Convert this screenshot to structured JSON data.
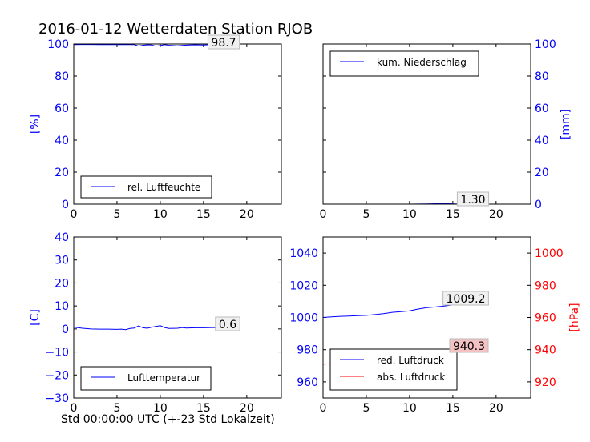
{
  "title": "2016-01-12 Wetterdaten Station RJOB",
  "footer": "Std 00:00:00 UTC (+-23 Std Lokalzeit)",
  "colors": {
    "blue": "#0000ff",
    "red": "#ff0000",
    "annot_red_bg": "#f4c2c2",
    "annot_bg": "#f0f0f0"
  },
  "chart_data": [
    {
      "type": "line",
      "panel": "top-left",
      "ylabel": "[%]",
      "xlim": [
        0,
        24
      ],
      "ylim": [
        0,
        100
      ],
      "xticks": [
        0,
        5,
        10,
        15,
        20
      ],
      "yticks": [
        0,
        20,
        40,
        60,
        80,
        100
      ],
      "legend": {
        "placement": "bottom-left",
        "entries": [
          "rel. Luftfeuchte"
        ]
      },
      "annotation": "98.7",
      "series": [
        {
          "name": "rel. Luftfeuchte",
          "color": "#0000ff",
          "x": [
            0,
            1,
            2,
            3,
            4,
            5,
            6,
            7,
            7.5,
            8,
            8.5,
            9,
            9.5,
            10,
            10.5,
            11,
            12,
            13,
            14,
            15,
            16,
            17,
            18,
            19
          ],
          "y": [
            99.6,
            99.7,
            99.7,
            99.6,
            99.7,
            99.6,
            99.7,
            99.6,
            98.7,
            99.2,
            99.5,
            99.4,
            98.6,
            99.0,
            99.6,
            99.2,
            98.9,
            99.3,
            99.5,
            99.4,
            99.6,
            99.3,
            99.0,
            98.7
          ]
        }
      ]
    },
    {
      "type": "line",
      "panel": "top-right",
      "ylabel": "[mm]",
      "xlim": [
        0,
        24
      ],
      "ylim": [
        0,
        100
      ],
      "xticks": [
        0,
        5,
        10,
        15,
        20
      ],
      "yticks": [
        0,
        20,
        40,
        60,
        80,
        100
      ],
      "legend": {
        "placement": "top-left",
        "entries": [
          "kum. Niederschlag"
        ]
      },
      "annotation": "1.30",
      "series": [
        {
          "name": "kum. Niederschlag",
          "color": "#0000ff",
          "x": [
            0,
            5,
            10,
            12,
            14,
            16,
            18,
            19
          ],
          "y": [
            0,
            0,
            0,
            0.1,
            0.4,
            0.8,
            1.1,
            1.3
          ]
        }
      ]
    },
    {
      "type": "line",
      "panel": "bottom-left",
      "ylabel": "[C]",
      "xlim": [
        0,
        24
      ],
      "ylim": [
        -30,
        40
      ],
      "xticks": [
        0,
        5,
        10,
        15,
        20
      ],
      "yticks": [
        -30,
        -20,
        -10,
        0,
        10,
        20,
        30,
        40
      ],
      "legend": {
        "placement": "bottom-left",
        "entries": [
          "Lufttemperatur"
        ]
      },
      "annotation": "0.6",
      "series": [
        {
          "name": "Lufttemperatur",
          "color": "#0000ff",
          "x": [
            0,
            1,
            2,
            3,
            4,
            5,
            5.5,
            6,
            6.5,
            7,
            7.5,
            8,
            8.5,
            9,
            9.5,
            10,
            10.5,
            11,
            12,
            12.5,
            13,
            14,
            15,
            16,
            17,
            18,
            19
          ],
          "y": [
            0.8,
            0.3,
            0.0,
            -0.1,
            -0.1,
            -0.2,
            -0.1,
            -0.3,
            0.2,
            0.4,
            1.3,
            0.5,
            0.3,
            0.8,
            1.1,
            1.4,
            0.6,
            0.2,
            0.3,
            0.6,
            0.4,
            0.5,
            0.5,
            0.6,
            0.6,
            0.5,
            0.6
          ]
        }
      ]
    },
    {
      "type": "line",
      "panel": "bottom-right",
      "xlim": [
        0,
        24
      ],
      "ylim": [
        950,
        1050
      ],
      "yticks": [
        960,
        980,
        1000,
        1020,
        1040
      ],
      "y2label": "[hPa]",
      "y2lim": [
        910,
        1010
      ],
      "y2ticks": [
        920,
        940,
        960,
        980,
        1000
      ],
      "xticks": [
        0,
        5,
        10,
        15,
        20
      ],
      "legend": {
        "placement": "bottom-left",
        "entries": [
          "red. Luftdruck",
          "abs. Luftdruck"
        ]
      },
      "annotations": [
        "1009.2",
        "940.3"
      ],
      "series": [
        {
          "name": "red. Luftdruck",
          "color": "#0000ff",
          "axis": "left",
          "x": [
            0,
            1,
            2,
            3,
            4,
            5,
            6,
            7,
            8,
            9,
            10,
            11,
            12,
            13,
            14,
            15,
            16,
            17,
            18,
            19
          ],
          "y": [
            1000.0,
            1000.4,
            1000.7,
            1000.9,
            1001.1,
            1001.3,
            1001.8,
            1002.4,
            1003.2,
            1003.6,
            1004.1,
            1005.2,
            1006.1,
            1006.5,
            1007.1,
            1007.8,
            1008.2,
            1008.6,
            1008.9,
            1009.2
          ]
        },
        {
          "name": "abs. Luftdruck",
          "color": "#ff0000",
          "axis": "right",
          "x": [
            0,
            1,
            2,
            3,
            4,
            5,
            6,
            7,
            8,
            9,
            10,
            11,
            12,
            13,
            14,
            15,
            16,
            17,
            18,
            19
          ],
          "y": [
            931.0,
            931.3,
            931.6,
            931.9,
            932.1,
            932.4,
            932.9,
            933.5,
            934.2,
            934.6,
            935.0,
            936.1,
            937.0,
            937.4,
            938.0,
            938.6,
            939.2,
            939.6,
            940.0,
            940.3
          ]
        }
      ]
    }
  ]
}
